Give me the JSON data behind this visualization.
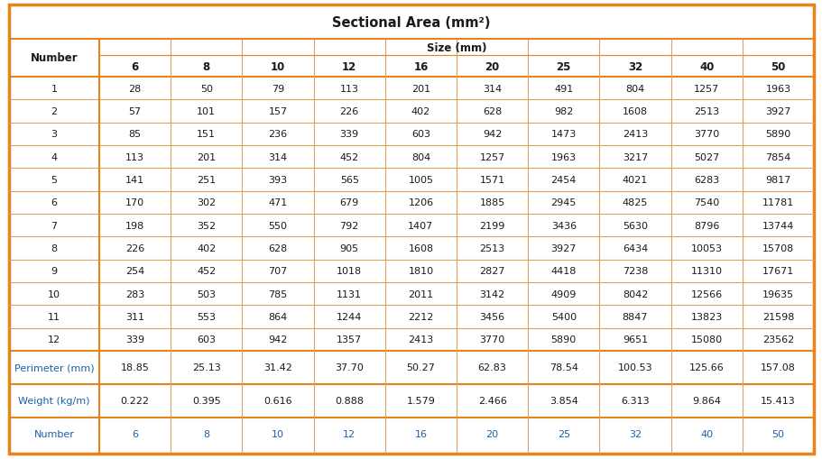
{
  "title": "Sectional Area (mm²)",
  "col_header_row1": "Size (mm)",
  "col_header_row2": [
    "6",
    "8",
    "10",
    "12",
    "16",
    "20",
    "25",
    "32",
    "40",
    "50"
  ],
  "row_header": "Number",
  "numbers": [
    "1",
    "2",
    "3",
    "4",
    "5",
    "6",
    "7",
    "8",
    "9",
    "10",
    "11",
    "12"
  ],
  "data": [
    [
      28,
      50,
      79,
      113,
      201,
      314,
      491,
      804,
      1257,
      1963
    ],
    [
      57,
      101,
      157,
      226,
      402,
      628,
      982,
      1608,
      2513,
      3927
    ],
    [
      85,
      151,
      236,
      339,
      603,
      942,
      1473,
      2413,
      3770,
      5890
    ],
    [
      113,
      201,
      314,
      452,
      804,
      1257,
      1963,
      3217,
      5027,
      7854
    ],
    [
      141,
      251,
      393,
      565,
      1005,
      1571,
      2454,
      4021,
      6283,
      9817
    ],
    [
      170,
      302,
      471,
      679,
      1206,
      1885,
      2945,
      4825,
      7540,
      11781
    ],
    [
      198,
      352,
      550,
      792,
      1407,
      2199,
      3436,
      5630,
      8796,
      13744
    ],
    [
      226,
      402,
      628,
      905,
      1608,
      2513,
      3927,
      6434,
      10053,
      15708
    ],
    [
      254,
      452,
      707,
      1018,
      1810,
      2827,
      4418,
      7238,
      11310,
      17671
    ],
    [
      283,
      503,
      785,
      1131,
      2011,
      3142,
      4909,
      8042,
      12566,
      19635
    ],
    [
      311,
      553,
      864,
      1244,
      2212,
      3456,
      5400,
      8847,
      13823,
      21598
    ],
    [
      339,
      603,
      942,
      1357,
      2413,
      3770,
      5890,
      9651,
      15080,
      23562
    ]
  ],
  "perimeter_label": "Perimeter (mm)",
  "perimeter_values": [
    "18.85",
    "25.13",
    "31.42",
    "37.70",
    "50.27",
    "62.83",
    "78.54",
    "100.53",
    "125.66",
    "157.08"
  ],
  "weight_label": "Weight (kg/m)",
  "weight_values": [
    "0.222",
    "0.395",
    "0.616",
    "0.888",
    "1.579",
    "2.466",
    "3.854",
    "6.313",
    "9.864",
    "15.413"
  ],
  "number_label": "Number",
  "number_values": [
    "6",
    "8",
    "10",
    "12",
    "16",
    "20",
    "25",
    "32",
    "40",
    "50"
  ],
  "orange_color": "#E8821A",
  "blue_color": "#1B5FAA",
  "text_dark": "#1a1a1a",
  "bg_white": "#FFFFFF",
  "title_fontsize": 10.5,
  "header_fontsize": 8.5,
  "cell_fontsize": 8.0
}
